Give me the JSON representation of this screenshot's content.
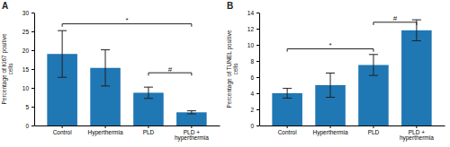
{
  "chart_data": [
    {
      "type": "bar",
      "title": "A",
      "categories": [
        "Control",
        "Hyperthermia",
        "PLD",
        "PLD +\nhyperthermia"
      ],
      "values": [
        19.0,
        15.3,
        8.7,
        3.5
      ],
      "errors": [
        6.2,
        4.8,
        1.5,
        0.4
      ],
      "ylabel": "Percentage of Ki67 positive\ncells",
      "ylim": [
        0,
        30
      ],
      "yticks": [
        0,
        5,
        10,
        15,
        20,
        25,
        30
      ],
      "annotations": [
        {
          "from": "Control",
          "to": "PLD +\nhyperthermia",
          "y": 27.0,
          "label": "*"
        },
        {
          "from": "PLD",
          "to": "PLD +\nhyperthermia",
          "y": 14.0,
          "label": "#"
        }
      ]
    },
    {
      "type": "bar",
      "title": "B",
      "categories": [
        "Control",
        "Hyperthermia",
        "PLD",
        "PLD +\nhyperthermia"
      ],
      "values": [
        4.0,
        5.0,
        7.5,
        11.8
      ],
      "errors": [
        0.6,
        1.5,
        1.3,
        1.3
      ],
      "ylabel": "Percentage of TUNEL positive\ncells",
      "ylim": [
        0,
        14
      ],
      "yticks": [
        0,
        2,
        4,
        6,
        8,
        10,
        12,
        14
      ],
      "annotations": [
        {
          "from": "Control",
          "to": "PLD",
          "y": 9.5,
          "label": "*"
        },
        {
          "from": "PLD",
          "to": "PLD +\nhyperthermia",
          "y": 12.8,
          "label": "#"
        }
      ]
    }
  ]
}
